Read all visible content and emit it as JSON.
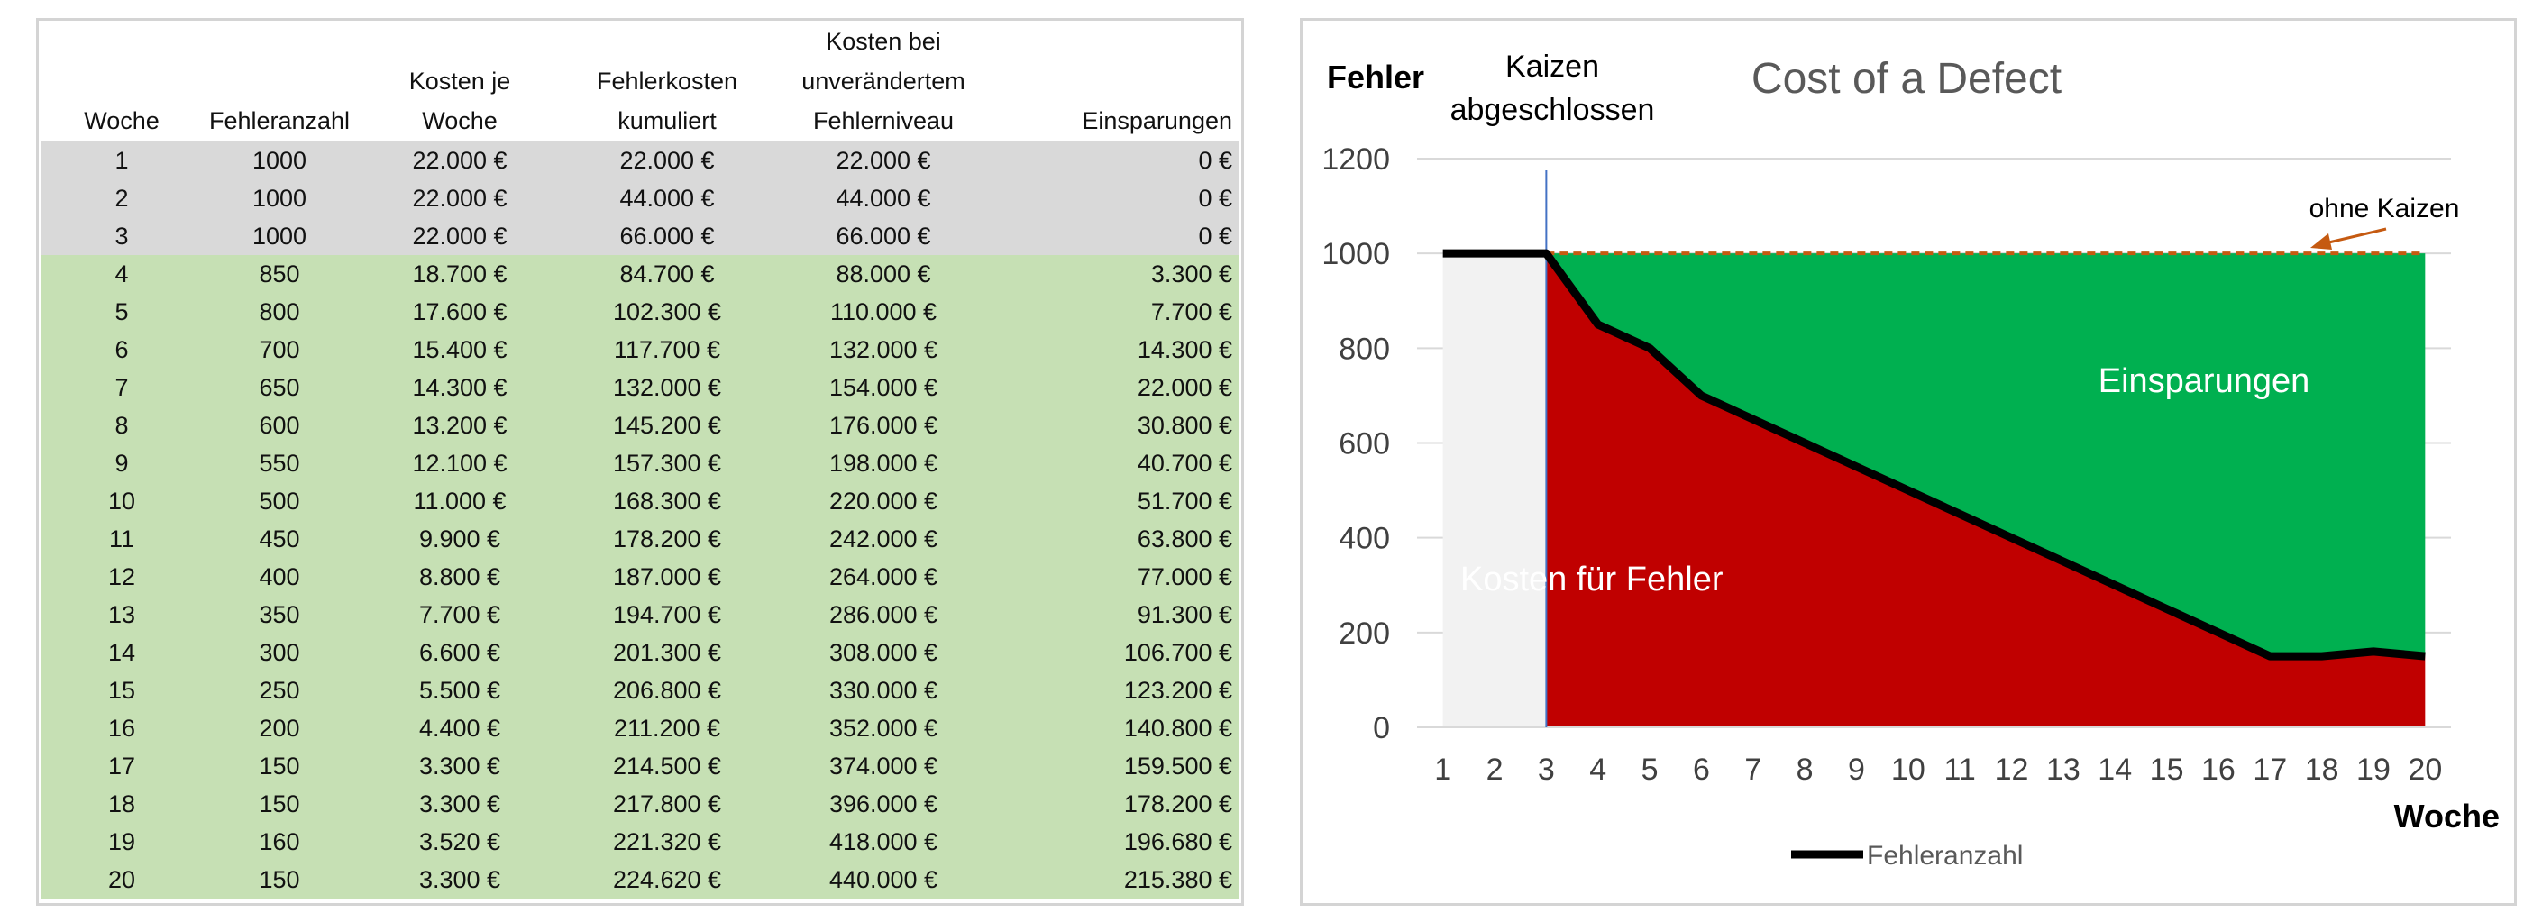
{
  "table": {
    "headers": [
      [
        "",
        "",
        "Woche"
      ],
      [
        "",
        "",
        "Fehleranzahl"
      ],
      [
        "",
        "Kosten je",
        "Woche"
      ],
      [
        "",
        "Fehlerkosten",
        "kumuliert"
      ],
      [
        "Kosten bei",
        "unverändertem",
        "Fehlerniveau"
      ],
      [
        "",
        "",
        "Einsparungen"
      ]
    ],
    "rows": [
      [
        "1",
        "1000",
        "22.000 €",
        "22.000 €",
        "22.000 €",
        "0 €"
      ],
      [
        "2",
        "1000",
        "22.000 €",
        "44.000 €",
        "44.000 €",
        "0 €"
      ],
      [
        "3",
        "1000",
        "22.000 €",
        "66.000 €",
        "66.000 €",
        "0 €"
      ],
      [
        "4",
        "850",
        "18.700 €",
        "84.700 €",
        "88.000 €",
        "3.300 €"
      ],
      [
        "5",
        "800",
        "17.600 €",
        "102.300 €",
        "110.000 €",
        "7.700 €"
      ],
      [
        "6",
        "700",
        "15.400 €",
        "117.700 €",
        "132.000 €",
        "14.300 €"
      ],
      [
        "7",
        "650",
        "14.300 €",
        "132.000 €",
        "154.000 €",
        "22.000 €"
      ],
      [
        "8",
        "600",
        "13.200 €",
        "145.200 €",
        "176.000 €",
        "30.800 €"
      ],
      [
        "9",
        "550",
        "12.100 €",
        "157.300 €",
        "198.000 €",
        "40.700 €"
      ],
      [
        "10",
        "500",
        "11.000 €",
        "168.300 €",
        "220.000 €",
        "51.700 €"
      ],
      [
        "11",
        "450",
        "9.900 €",
        "178.200 €",
        "242.000 €",
        "63.800 €"
      ],
      [
        "12",
        "400",
        "8.800 €",
        "187.000 €",
        "264.000 €",
        "77.000 €"
      ],
      [
        "13",
        "350",
        "7.700 €",
        "194.700 €",
        "286.000 €",
        "91.300 €"
      ],
      [
        "14",
        "300",
        "6.600 €",
        "201.300 €",
        "308.000 €",
        "106.700 €"
      ],
      [
        "15",
        "250",
        "5.500 €",
        "206.800 €",
        "330.000 €",
        "123.200 €"
      ],
      [
        "16",
        "200",
        "4.400 €",
        "211.200 €",
        "352.000 €",
        "140.800 €"
      ],
      [
        "17",
        "150",
        "3.300 €",
        "214.500 €",
        "374.000 €",
        "159.500 €"
      ],
      [
        "18",
        "150",
        "3.300 €",
        "217.800 €",
        "396.000 €",
        "178.200 €"
      ],
      [
        "19",
        "160",
        "3.520 €",
        "221.320 €",
        "418.000 €",
        "196.680 €"
      ],
      [
        "20",
        "150",
        "3.300 €",
        "224.620 €",
        "440.000 €",
        "215.380 €"
      ]
    ],
    "baseline_row_count": 3
  },
  "chart_data": {
    "type": "area",
    "title": "Cost of a Defect",
    "ylabel": "Fehler",
    "xlabel": "Woche",
    "x": [
      1,
      2,
      3,
      4,
      5,
      6,
      7,
      8,
      9,
      10,
      11,
      12,
      13,
      14,
      15,
      16,
      17,
      18,
      19,
      20
    ],
    "ylim": [
      0,
      1200
    ],
    "yticks": [
      0,
      200,
      400,
      600,
      800,
      1000,
      1200
    ],
    "grid": true,
    "series": [
      {
        "name": "Fehleranzahl",
        "values": [
          1000,
          1000,
          1000,
          850,
          800,
          700,
          650,
          600,
          550,
          500,
          450,
          400,
          350,
          300,
          250,
          200,
          150,
          150,
          160,
          150
        ]
      }
    ],
    "baseline_level": 1000,
    "kaizen_week": 3,
    "annotations": {
      "kaizen": [
        "Kaizen",
        "abgeschlossen"
      ],
      "baseline": "ohne Kaizen",
      "savings_area": "Einsparungen",
      "cost_area": "Kosten für Fehler"
    },
    "legend_position": "bottom",
    "colors": {
      "line": "#000000",
      "cost_area": "#c00000",
      "savings_area": "#00b050",
      "pre_kaizen_area": "#f2f2f2",
      "baseline_line": "#c55a11",
      "kaizen_marker": "#4472c4",
      "grid": "#d9d9d9",
      "title": "#595959"
    }
  }
}
